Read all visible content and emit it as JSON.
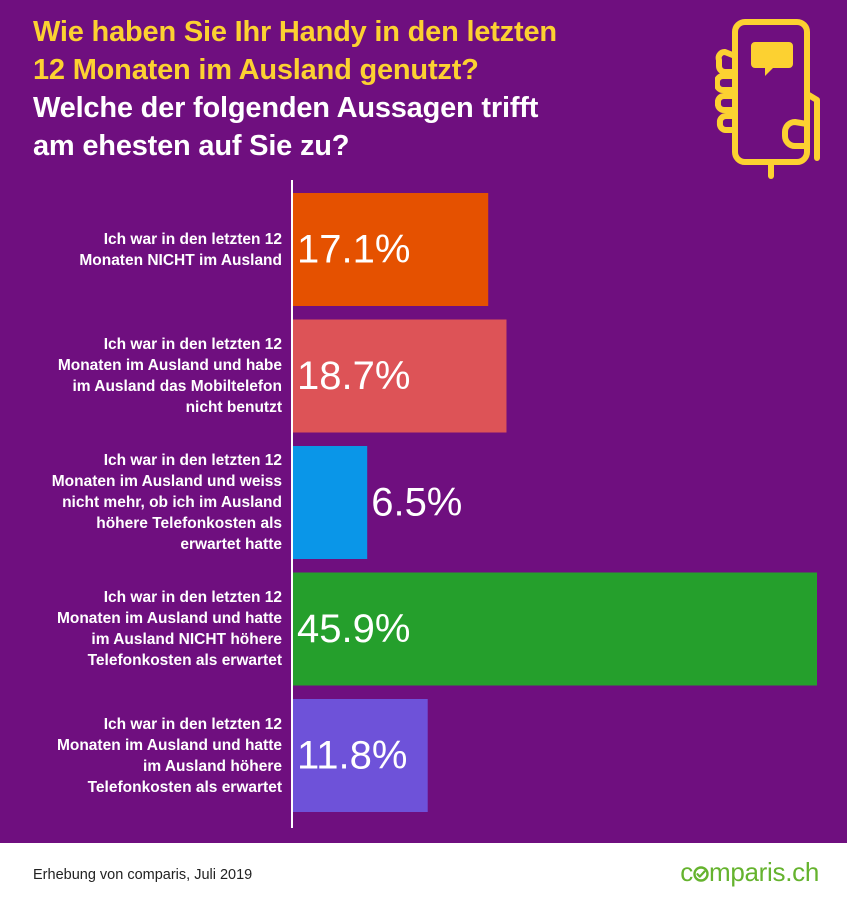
{
  "title": {
    "question_lines": [
      "Wie haben Sie Ihr Handy in den letzten",
      "12 Monaten im Ausland genutzt?"
    ],
    "subtitle_lines": [
      "Welche der folgenden Aussagen trifft",
      "am ehesten auf Sie zu?"
    ]
  },
  "icon": "phone-in-hand-with-chat-bubble-icon",
  "colors": {
    "background": "#6f0f7f",
    "accent_yellow": "#fcd131",
    "brand_green": "#65b32e"
  },
  "chart_data": {
    "type": "bar",
    "orientation": "horizontal",
    "categories": [
      [
        "Ich war in den letzten 12",
        "Monaten NICHT im Ausland"
      ],
      [
        "Ich war in den letzten 12",
        "Monaten im Ausland und habe",
        "im Ausland das Mobiltelefon",
        "nicht benutzt"
      ],
      [
        "Ich war in den letzten 12",
        "Monaten im Ausland und weiss",
        "nicht mehr, ob ich im Ausland",
        "höhere Telefonkosten als",
        "erwartet hatte"
      ],
      [
        "Ich war in den letzten 12",
        "Monaten im Ausland und hatte",
        "im Ausland NICHT höhere",
        "Telefonkosten als erwartet"
      ],
      [
        "Ich war in den letzten 12",
        "Monaten im Ausland und hatte",
        "im Ausland höhere",
        "Telefonkosten als erwartet"
      ]
    ],
    "values": [
      17.1,
      18.7,
      6.5,
      45.9,
      11.8
    ],
    "value_labels": [
      "17.1%",
      "18.7%",
      "6.5%",
      "45.9%",
      "11.8%"
    ],
    "bar_colors": [
      "#e55100",
      "#dd5357",
      "#0a96e8",
      "#259f2c",
      "#6e52d9"
    ],
    "xlim": [
      0,
      45.9
    ],
    "axis_visible": false,
    "grid": false
  },
  "footer": {
    "source": "Erhebung von comparis, Juli 2019",
    "brand_before": "c",
    "brand_after": "mparis.ch"
  }
}
